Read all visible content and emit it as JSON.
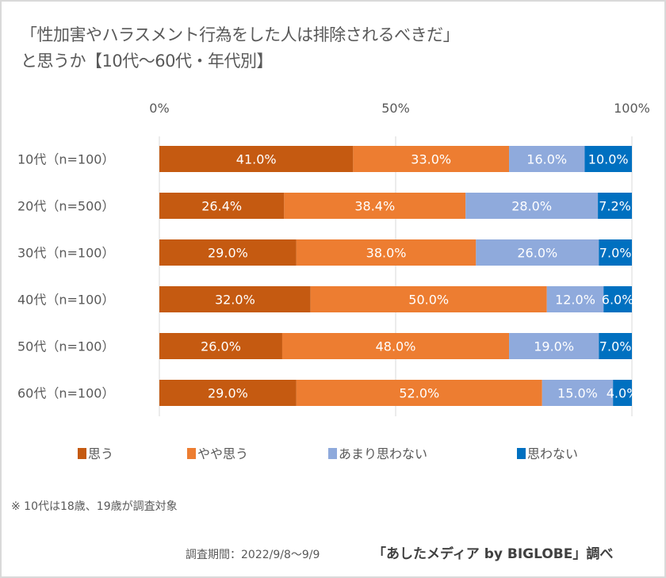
{
  "chart_data": {
    "type": "bar",
    "orientation": "horizontal",
    "stacked": "percent",
    "title": "「性加害やハラスメント行為をした人は排除されるべきだ」と思うか【10代～60代・年代別】",
    "title_lines": [
      "「性加害やハラスメント行為をした人は排除されるべきだ」",
      "と思うか【10代～60代・年代別】"
    ],
    "categories": [
      "10代（n=100）",
      "20代（n=500）",
      "30代（n=100）",
      "40代（n=100）",
      "50代（n=100）",
      "60代（n=100）"
    ],
    "series": [
      {
        "name": "思う",
        "color": "#c55a11",
        "values": [
          41.0,
          26.4,
          29.0,
          32.0,
          26.0,
          29.0
        ]
      },
      {
        "name": "やや思う",
        "color": "#ed7d31",
        "values": [
          33.0,
          38.4,
          38.0,
          50.0,
          48.0,
          52.0
        ]
      },
      {
        "name": "あまり思わない",
        "color": "#8faadc",
        "values": [
          16.0,
          28.0,
          26.0,
          12.0,
          19.0,
          15.0
        ]
      },
      {
        "name": "思わない",
        "color": "#0070c0",
        "values": [
          10.0,
          7.2,
          7.0,
          6.0,
          7.0,
          4.0
        ]
      }
    ],
    "xlim": [
      0,
      100
    ],
    "x_ticks": [
      "0%",
      "50%",
      "100%"
    ],
    "xlabel": "",
    "ylabel": "",
    "grid": true,
    "legend_position": "bottom"
  },
  "footnote": "※ 10代は18歳、19歳が調査対象",
  "survey_period": "調査期間：2022/9/8～9/9",
  "credit": "「あしたメディア by BIGLOBE」調べ"
}
